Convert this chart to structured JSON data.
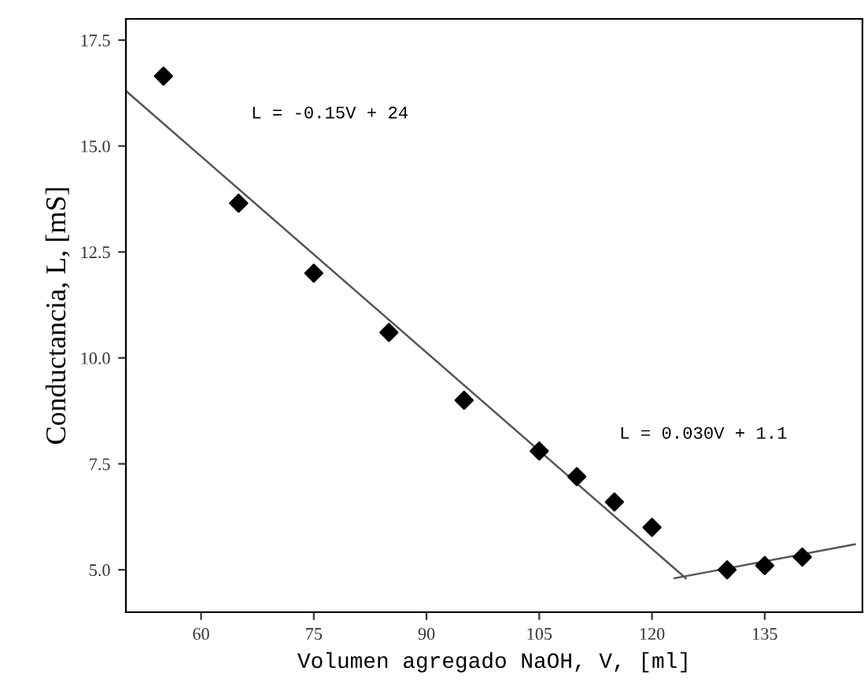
{
  "chart_data": {
    "type": "scatter",
    "xlabel": "Volumen agregado NaOH, V, [ml]",
    "ylabel": "Conductancia, L, [mS]",
    "xlim": [
      50,
      148
    ],
    "ylim": [
      4,
      18
    ],
    "xticks": [
      60,
      75,
      90,
      105,
      120,
      135
    ],
    "yticks": [
      {
        "value": 5,
        "label": "5.0"
      },
      {
        "value": 7.5,
        "label": "7.5"
      },
      {
        "value": 10,
        "label": "10.0"
      },
      {
        "value": 12.5,
        "label": "12.5"
      },
      {
        "value": 15,
        "label": "15.0"
      },
      {
        "value": 17.5,
        "label": "17.5"
      }
    ],
    "grid": false,
    "legend": false,
    "series": [
      {
        "marker": "diamond",
        "color": "#000000",
        "x": [
          55,
          65,
          75,
          85,
          95,
          105,
          110,
          115,
          120,
          130,
          135,
          140
        ],
        "values": [
          16.65,
          13.65,
          12.0,
          10.6,
          9.0,
          7.8,
          7.2,
          6.6,
          6.0,
          5.0,
          5.1,
          5.3
        ]
      },
      {
        "type": "line",
        "marker": "none",
        "color": "#555555",
        "x": [
          50,
          124.5
        ],
        "values": [
          16.3,
          4.8
        ]
      },
      {
        "type": "line",
        "marker": "none",
        "color": "#555555",
        "x": [
          123,
          147
        ],
        "values": [
          4.8,
          5.6
        ]
      }
    ],
    "annotations": [
      "L = -0.15V + 24",
      "L = 0.030V + 1.1"
    ]
  }
}
